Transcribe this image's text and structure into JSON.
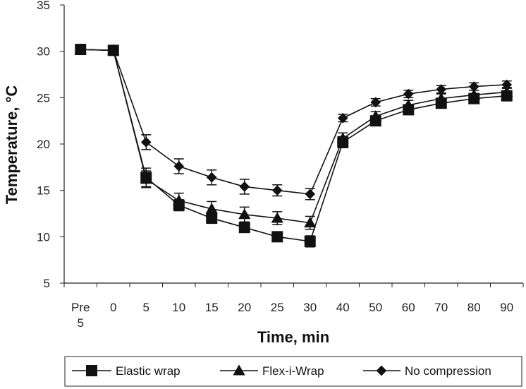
{
  "chart_data": {
    "type": "line",
    "xlabel": "Time, min",
    "ylabel": "Temperature, °C",
    "categories": [
      "Pre 5",
      "0",
      "5",
      "10",
      "15",
      "20",
      "25",
      "30",
      "40",
      "50",
      "60",
      "70",
      "80",
      "90"
    ],
    "y_ticks": [
      5,
      10,
      15,
      20,
      25,
      30,
      35
    ],
    "ylim": [
      5,
      35
    ],
    "grid": false,
    "legend_position": "bottom",
    "series": [
      {
        "name": "Elastic wrap",
        "marker": "square",
        "values": [
          30.2,
          30.1,
          16.4,
          13.4,
          12.0,
          11.0,
          10.0,
          9.5,
          20.2,
          22.5,
          23.7,
          24.4,
          24.9,
          25.2
        ],
        "errors": [
          0,
          0,
          1.0,
          0.6,
          0.5,
          0.5,
          0.4,
          0.6,
          0.6,
          0.5,
          0.5,
          0.5,
          0.5,
          0.5
        ]
      },
      {
        "name": "Flex-i-Wrap",
        "marker": "triangle",
        "values": [
          30.2,
          30.1,
          16.2,
          13.9,
          13.0,
          12.4,
          12.0,
          11.5,
          20.6,
          23.0,
          24.2,
          24.9,
          25.3,
          25.6
        ],
        "errors": [
          0,
          0,
          0.9,
          0.8,
          0.8,
          0.8,
          0.7,
          0.7,
          0.6,
          0.5,
          0.5,
          0.5,
          0.5,
          0.5
        ]
      },
      {
        "name": "No compression",
        "marker": "diamond",
        "values": [
          30.2,
          30.1,
          20.2,
          17.6,
          16.4,
          15.4,
          15.0,
          14.6,
          22.8,
          24.5,
          25.4,
          25.9,
          26.2,
          26.4
        ],
        "errors": [
          0,
          0,
          0.8,
          0.8,
          0.8,
          0.8,
          0.6,
          0.6,
          0.4,
          0.4,
          0.4,
          0.4,
          0.4,
          0.4
        ]
      }
    ]
  }
}
